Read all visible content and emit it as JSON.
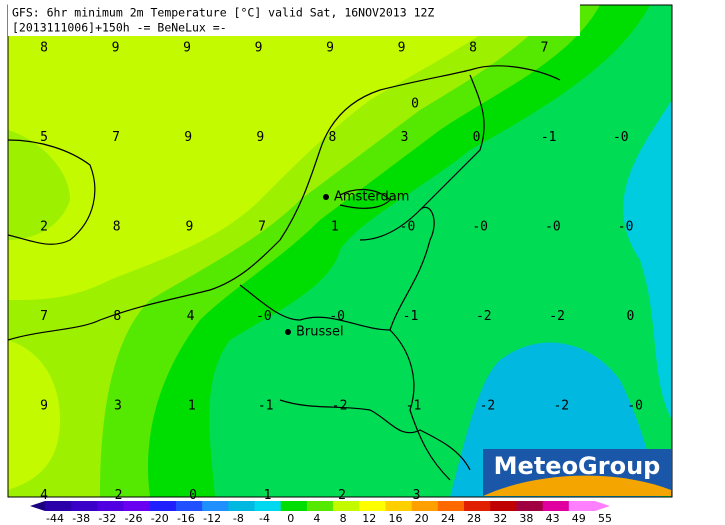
{
  "header": {
    "line1": "GFS: 6hr minimum 2m Temperature [°C] valid Sat, 16NOV2013 12Z",
    "line2": "[2013111006]+150h -= BeNeLux =-"
  },
  "grid_values": [
    [
      "8",
      "9",
      "9",
      "9",
      "9",
      "9",
      "8",
      "7"
    ],
    [
      "5",
      "7",
      "9",
      "9",
      "8",
      "3",
      "0",
      "-1",
      "-0"
    ],
    [
      "2",
      "8",
      "9",
      "7",
      "1",
      "-0",
      "-0",
      "-0",
      "-0"
    ],
    [
      "7",
      "8",
      "4",
      "-0",
      "-0",
      "-1",
      "-2",
      "-2",
      "0"
    ],
    [
      "9",
      "3",
      "1",
      "-1",
      "-2",
      "-1",
      "-2",
      "-2",
      "-0"
    ],
    [
      "4",
      "2",
      "0",
      "1",
      "2",
      "3"
    ]
  ],
  "extra_value": "0",
  "cities": [
    {
      "name": "Amsterdam"
    },
    {
      "name": "Brussel"
    }
  ],
  "legend": {
    "labels": [
      "-44",
      "-38",
      "-32",
      "-26",
      "-20",
      "-16",
      "-12",
      "-8",
      "-4",
      "0",
      "4",
      "8",
      "12",
      "16",
      "20",
      "24",
      "28",
      "32",
      "38",
      "43",
      "49",
      "55"
    ]
  },
  "logo": "MeteoGroup"
}
